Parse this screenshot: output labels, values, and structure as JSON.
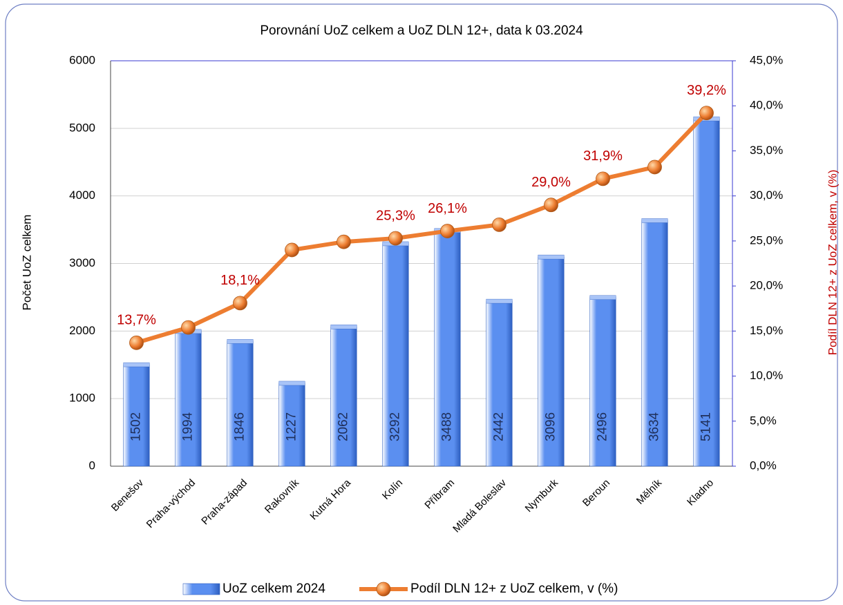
{
  "chart_data": {
    "type": "bar_line",
    "title": "Porovnání UoZ celkem a UoZ DLN 12+, data k 03.2024",
    "y_label": "Počet UoZ celkem",
    "y2_label": "Podíl DLN 12+ z UoZ celkem, v (%)",
    "categories": [
      "Benešov",
      "Praha-východ",
      "Praha-západ",
      "Rakovník",
      "Kutná Hora",
      "Kolín",
      "Příbram",
      "Mladá Boleslav",
      "Nymburk",
      "Beroun",
      "Mělník",
      "Kladno"
    ],
    "series": [
      {
        "name": "UoZ celkem 2024",
        "type": "bar",
        "color": "#5b8ff0",
        "values": [
          1502,
          1994,
          1846,
          1227,
          2062,
          3292,
          3488,
          2442,
          3096,
          2496,
          3634,
          5141
        ]
      },
      {
        "name": "Podíl DLN 12+ z UoZ celkem, v  (%)",
        "type": "line",
        "axis": "y2",
        "color": "#ed7d31",
        "label_color": "#c00000",
        "values": [
          13.7,
          15.4,
          18.1,
          24.0,
          24.9,
          25.3,
          26.1,
          26.8,
          29.0,
          31.9,
          33.2,
          39.2
        ],
        "value_labels": [
          "13,7%",
          null,
          "18,1%",
          null,
          null,
          "25,3%",
          "26,1%",
          null,
          "29,0%",
          "31,9%",
          null,
          "39,2%"
        ]
      }
    ],
    "ylim": [
      0,
      6000
    ],
    "yticks": [
      0,
      1000,
      2000,
      3000,
      4000,
      5000,
      6000
    ],
    "y2lim": [
      0,
      45
    ],
    "y2ticks": [
      {
        "value": 0,
        "label": "0,0%"
      },
      {
        "value": 5,
        "label": "5,0%"
      },
      {
        "value": 10,
        "label": "10,0%"
      },
      {
        "value": 15,
        "label": "15,0%"
      },
      {
        "value": 20,
        "label": "20,0%"
      },
      {
        "value": 25,
        "label": "25,0%"
      },
      {
        "value": 30,
        "label": "30,0%"
      },
      {
        "value": 35,
        "label": "35,0%"
      },
      {
        "value": 40,
        "label": "40,0%"
      },
      {
        "value": 45,
        "label": "45,0%"
      }
    ],
    "grid": true,
    "legend": "bottom"
  }
}
